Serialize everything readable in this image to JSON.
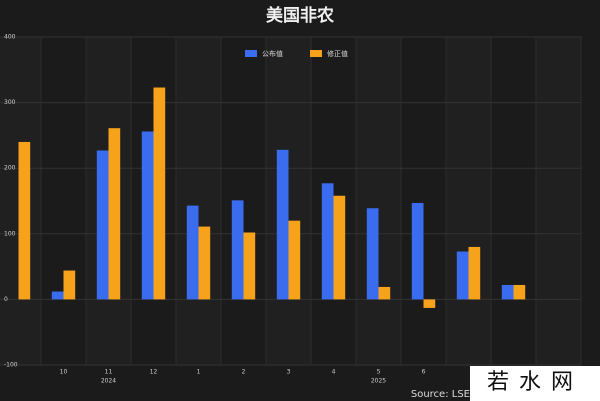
{
  "chart_data": {
    "type": "bar",
    "title": "美国非农",
    "categories": [
      null,
      "10",
      "11",
      "12",
      "1",
      "2",
      "3",
      "4",
      "5",
      "6",
      null,
      null,
      null
    ],
    "year_labels": [
      null,
      null,
      "2024",
      null,
      null,
      null,
      null,
      null,
      "2025",
      null,
      null,
      null,
      null
    ],
    "series": [
      {
        "name": "公布值",
        "color": "#3a6cf0",
        "values": [
          null,
          12,
          227,
          256,
          143,
          151,
          228,
          177,
          139,
          147,
          73,
          22,
          null
        ]
      },
      {
        "name": "修正值",
        "color": "#f7a21b",
        "values": [
          240,
          44,
          261,
          323,
          111,
          102,
          120,
          158,
          19,
          -13,
          80,
          22,
          null
        ]
      }
    ],
    "ylim": [
      -100,
      400
    ],
    "yticks": [
      -100,
      0,
      100,
      200,
      300,
      400
    ],
    "grid": true,
    "legend": "top",
    "source": "Source: LSE",
    "watermark": "若水网"
  }
}
